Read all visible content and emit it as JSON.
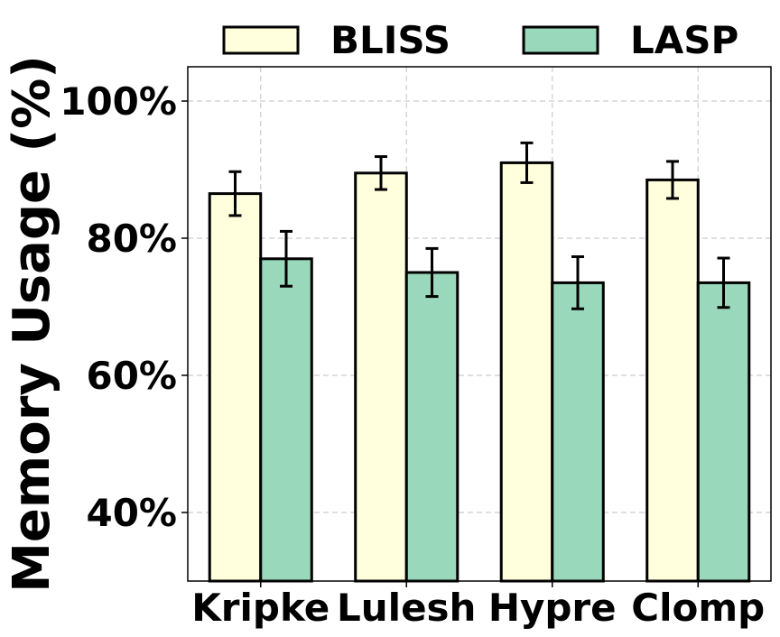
{
  "chart_data": {
    "type": "bar",
    "title": "",
    "xlabel": "",
    "ylabel": "Memory Usage (%)",
    "categories": [
      "Kripke",
      "Lulesh",
      "Hypre",
      "Clomp"
    ],
    "series": [
      {
        "name": "BLISS",
        "color": "#ffffdd",
        "values": [
          86.5,
          89.5,
          91.0,
          88.5
        ],
        "errors": [
          3.2,
          2.4,
          2.9,
          2.7
        ]
      },
      {
        "name": "LASP",
        "color": "#99d8ba",
        "values": [
          77.0,
          75.0,
          73.5,
          73.5
        ],
        "errors": [
          4.0,
          3.5,
          3.8,
          3.6
        ]
      }
    ],
    "ylim": [
      30,
      105
    ],
    "yticks": [
      40,
      60,
      80,
      100
    ],
    "ytick_labels": [
      "40%",
      "60%",
      "80%",
      "100%"
    ],
    "grid": true,
    "legend_position": "top"
  }
}
